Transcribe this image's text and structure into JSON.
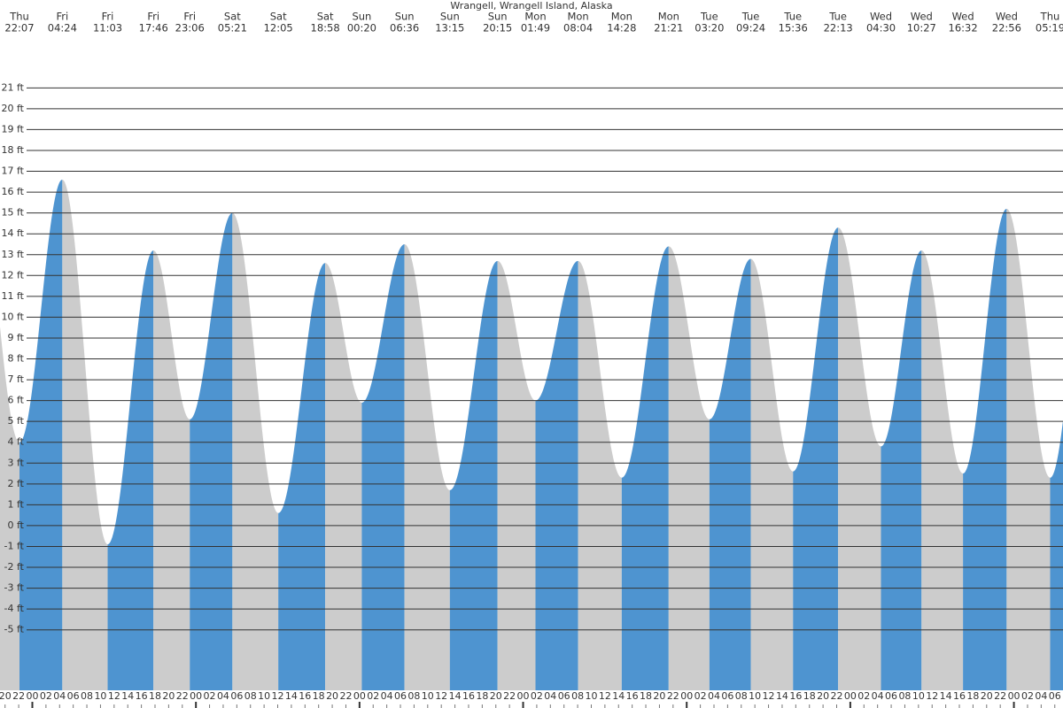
{
  "chart_data": {
    "type": "tide",
    "title": "Wrangell, Wrangell Island, Alaska",
    "days": [
      "Thu",
      "Fri",
      "Fri",
      "Fri",
      "Fri",
      "Sat",
      "Sat",
      "Sat",
      "Sun",
      "Sun",
      "Sun",
      "Sun",
      "Mon",
      "Mon",
      "Mon",
      "Mon",
      "Tue",
      "Tue",
      "Tue",
      "Tue",
      "Wed",
      "Wed",
      "Wed",
      "Wed",
      "Thu"
    ],
    "times": [
      "22:07",
      "04:24",
      "11:03",
      "17:46",
      "23:06",
      "05:21",
      "12:05",
      "18:58",
      "00:20",
      "06:36",
      "13:15",
      "20:15",
      "01:49",
      "08:04",
      "14:28",
      "21:21",
      "03:20",
      "09:24",
      "15:36",
      "22:13",
      "04:30",
      "10:27",
      "16:32",
      "22:56",
      "05:19"
    ],
    "heights": [
      4.0,
      16.6,
      -0.9,
      13.2,
      5.1,
      15.0,
      0.6,
      12.6,
      5.9,
      13.5,
      1.7,
      12.7,
      6.0,
      12.7,
      2.3,
      13.4,
      5.1,
      12.8,
      2.6,
      14.3,
      3.8,
      13.2,
      2.5,
      15.2,
      2.3
    ],
    "rising_color": "#4e94d0",
    "falling_color": "#cccccc",
    "ylim": [
      -7.9,
      22.5
    ],
    "yticks": [
      {
        "value": -5,
        "label": "-5 ft"
      },
      {
        "value": -4,
        "label": "-4 ft"
      },
      {
        "value": -3,
        "label": "-3 ft"
      },
      {
        "value": -2,
        "label": "-2 ft"
      },
      {
        "value": -1,
        "label": "-1 ft"
      },
      {
        "value": 0,
        "label": "0 ft"
      },
      {
        "value": 1,
        "label": "1 ft"
      },
      {
        "value": 2,
        "label": "2 ft"
      },
      {
        "value": 3,
        "label": "3 ft"
      },
      {
        "value": 4,
        "label": "4 ft"
      },
      {
        "value": 5,
        "label": "5 ft"
      },
      {
        "value": 6,
        "label": "6 ft"
      },
      {
        "value": 7,
        "label": "7 ft"
      },
      {
        "value": 8,
        "label": "8 ft"
      },
      {
        "value": 9,
        "label": "9 ft"
      },
      {
        "value": 10,
        "label": "10 ft"
      },
      {
        "value": 11,
        "label": "11 ft"
      },
      {
        "value": 12,
        "label": "12 ft"
      },
      {
        "value": 13,
        "label": "13 ft"
      },
      {
        "value": 14,
        "label": "14 ft"
      },
      {
        "value": 15,
        "label": "15 ft"
      },
      {
        "value": 16,
        "label": "16 ft"
      },
      {
        "value": 17,
        "label": "17 ft"
      },
      {
        "value": 18,
        "label": "18 ft"
      },
      {
        "value": 19,
        "label": "19 ft"
      },
      {
        "value": 20,
        "label": "20 ft"
      },
      {
        "value": 21,
        "label": "21 ft"
      }
    ],
    "hour_labels": [
      "20",
      "22",
      "00",
      "02",
      "04",
      "06",
      "08",
      "10",
      "12",
      "14",
      "16",
      "18",
      "20",
      "22",
      "00",
      "02",
      "04",
      "06",
      "08",
      "10",
      "12",
      "14",
      "16",
      "18",
      "20",
      "22",
      "00",
      "02",
      "04",
      "06",
      "08",
      "10",
      "12",
      "14",
      "16",
      "18",
      "20",
      "22",
      "00",
      "02",
      "04",
      "06",
      "08",
      "10",
      "12",
      "14",
      "16",
      "18",
      "20",
      "22",
      "00",
      "02",
      "04",
      "06",
      "08",
      "10",
      "12",
      "14",
      "16",
      "18",
      "20",
      "22",
      "00",
      "02",
      "04",
      "06",
      "08",
      "10",
      "12",
      "14",
      "16",
      "18",
      "20",
      "22",
      "00",
      "02",
      "04",
      "06"
    ]
  }
}
